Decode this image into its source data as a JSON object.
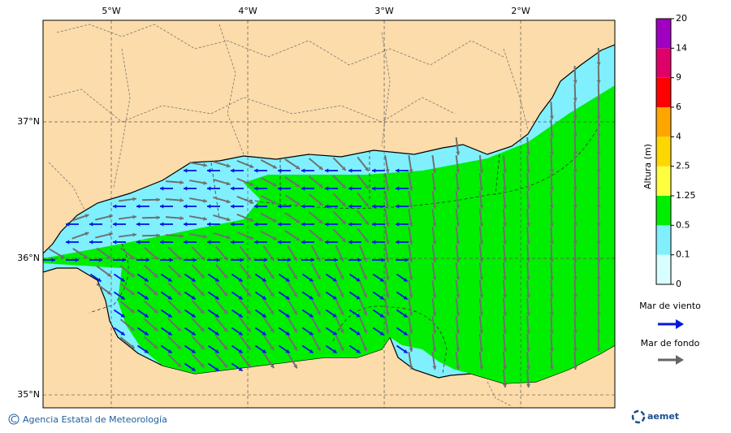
{
  "map": {
    "lonlim": [
      -5.5,
      -1.31
    ],
    "latlim": [
      34.905,
      37.744
    ],
    "lon_ticks": [
      {
        "value": -5,
        "label": "5°W"
      },
      {
        "value": -4,
        "label": "4°W"
      },
      {
        "value": -3,
        "label": "3°W"
      },
      {
        "value": -2,
        "label": "2°W"
      }
    ],
    "lat_ticks": [
      {
        "value": 37,
        "label": "37°N"
      },
      {
        "value": 36,
        "label": "36°N"
      },
      {
        "value": 35,
        "label": "35°N"
      }
    ]
  },
  "colorbar": {
    "title": "Altura (m)",
    "levels": [
      0,
      0.1,
      0.5,
      1.25,
      2.5,
      4,
      6,
      9,
      14,
      20
    ],
    "colors": [
      "#d8ffff",
      "#80f0ff",
      "#00ee00",
      "#ffff40",
      "#ffd700",
      "#ffa500",
      "#ff0000",
      "#e0006a",
      "#a000c0"
    ]
  },
  "legend": {
    "wind_sea": "Mar de viento",
    "swell": "Mar de fondo"
  },
  "footer": {
    "credit": "Agencia Estatal de Meteorología",
    "logo": "aemet"
  }
}
